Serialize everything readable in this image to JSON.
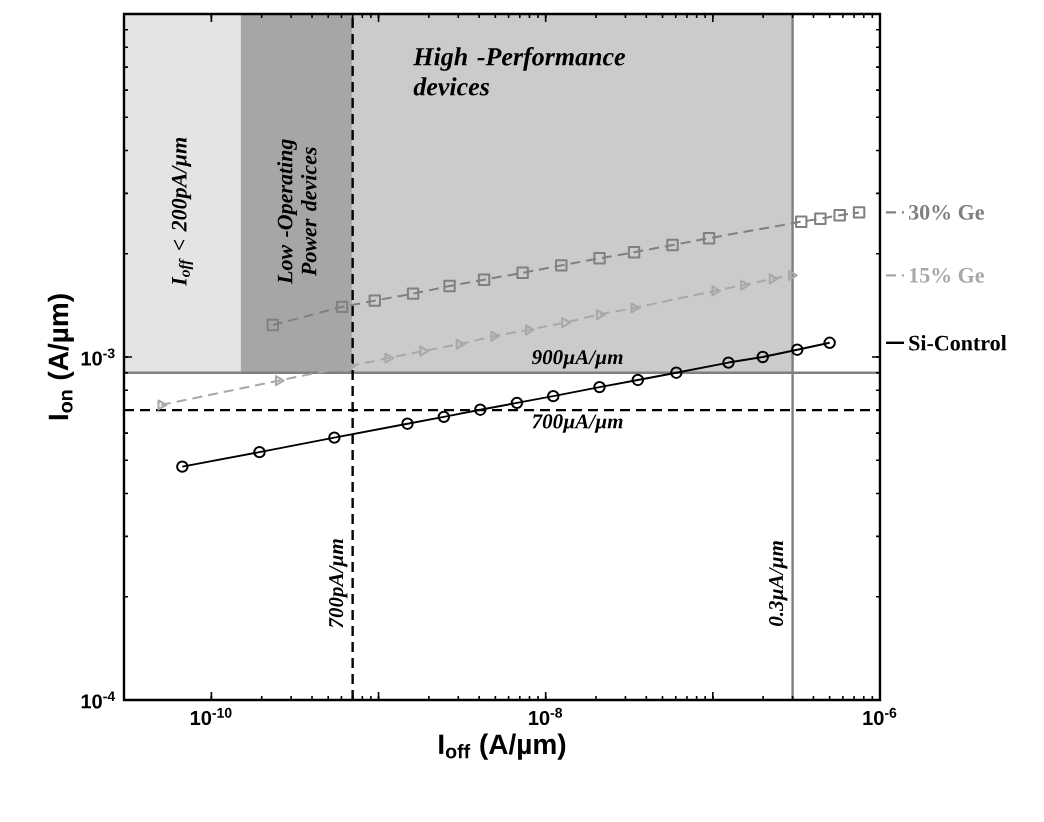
{
  "chart_data": {
    "type": "line",
    "xlabel": "I$_{off}$ (A/µm)",
    "ylabel": "I$_{on}$ (A/µm)",
    "log": "xy",
    "xlim": [
      3e-11,
      1e-06
    ],
    "ylim": [
      0.0001,
      0.01
    ],
    "xticks": [
      {
        "value": 1e-10,
        "label": "10$^{-10}$"
      },
      {
        "value": 1e-09,
        "label": null
      },
      {
        "value": 1e-08,
        "label": "10$^{-8}$"
      },
      {
        "value": 1e-07,
        "label": null
      },
      {
        "value": 1e-06,
        "label": "10$^{-6}$"
      }
    ],
    "yticks": [
      {
        "value": 0.0001,
        "label": "10$^{-4}$"
      },
      {
        "value": 0.001,
        "label": "10$^{-3}$"
      },
      {
        "value": 0.01,
        "label": null
      }
    ],
    "legend": "right",
    "series": [
      {
        "name": "30% Ge",
        "color": "#808080",
        "marker": "square",
        "line_style": "dashed",
        "x": [
          2.33e-10,
          6.05e-10,
          9.5e-10,
          1.61e-09,
          2.66e-09,
          4.28e-09,
          7.28e-09,
          1.24e-08,
          2.1e-08,
          3.38e-08,
          5.74e-08,
          9.5e-08,
          3.38e-07,
          4.4e-07,
          5.74e-07,
          7.5e-07
        ],
        "values": [
          0.00124,
          0.0014,
          0.00146,
          0.00153,
          0.00161,
          0.00168,
          0.00176,
          0.00185,
          0.00194,
          0.00202,
          0.00212,
          0.00222,
          0.00248,
          0.00253,
          0.00259,
          0.00264
        ]
      },
      {
        "name": "15% Ge",
        "color": "#a8a8a8",
        "marker": "triangle",
        "line_style": "dashed",
        "x": [
          5e-11,
          2.52e-10,
          6.72e-10,
          1.14e-09,
          1.84e-09,
          3.04e-09,
          4.9e-09,
          7.9e-09,
          1.3e-08,
          2.1e-08,
          3.38e-08,
          1.03e-07,
          1.53e-07,
          2.27e-07,
          2.96e-07
        ],
        "values": [
          0.000725,
          0.000853,
          0.00094,
          0.000993,
          0.00104,
          0.00109,
          0.00115,
          0.0012,
          0.00126,
          0.00133,
          0.00139,
          0.00156,
          0.00162,
          0.00169,
          0.00173
        ]
      },
      {
        "name": "Si-Control",
        "color": "#000000",
        "marker": "circle",
        "line_style": "solid",
        "x": [
          6.7e-11,
          1.94e-10,
          5.44e-10,
          1.49e-09,
          2.46e-09,
          4.06e-09,
          6.73e-09,
          1.11e-08,
          2.1e-08,
          3.56e-08,
          6.05e-08,
          1.24e-07,
          1.99e-07,
          3.2e-07,
          5e-07
        ],
        "values": [
          0.000479,
          0.000528,
          0.000582,
          0.000639,
          0.000669,
          0.000702,
          0.000735,
          0.000769,
          0.000817,
          0.000857,
          0.0009,
          0.000963,
          0.001,
          0.00105,
          0.0011
        ]
      }
    ],
    "ref_lines": [
      {
        "axis": "y",
        "value": 0.0009,
        "label": "900µA/µm",
        "color": "#808080",
        "line_style": "solid"
      },
      {
        "axis": "y",
        "value": 0.0007,
        "label": "700µA/µm",
        "color": "#000000",
        "line_style": "dashed"
      },
      {
        "axis": "x",
        "value": 7e-10,
        "label": "700pA/µm",
        "color": "#000000",
        "line_style": "dashed"
      },
      {
        "axis": "x",
        "value": 3e-07,
        "label": "0.3µA/µm",
        "color": "#808080",
        "line_style": "solid"
      }
    ],
    "bands": [
      {
        "axis": "x",
        "from": 3e-11,
        "to": 1.5e-10,
        "label": "I$_{off}$ < 200pA/µm",
        "color": "#e4e4e4"
      },
      {
        "axis": "x",
        "from": 1.5e-10,
        "to": 7e-10,
        "label": "Low -Operating Power devices",
        "color": "#a6a6a6"
      },
      {
        "axis": "x",
        "from": 7e-10,
        "to": 3e-07,
        "label": "High -Performance devices",
        "color": "#cbcbcb"
      }
    ]
  }
}
